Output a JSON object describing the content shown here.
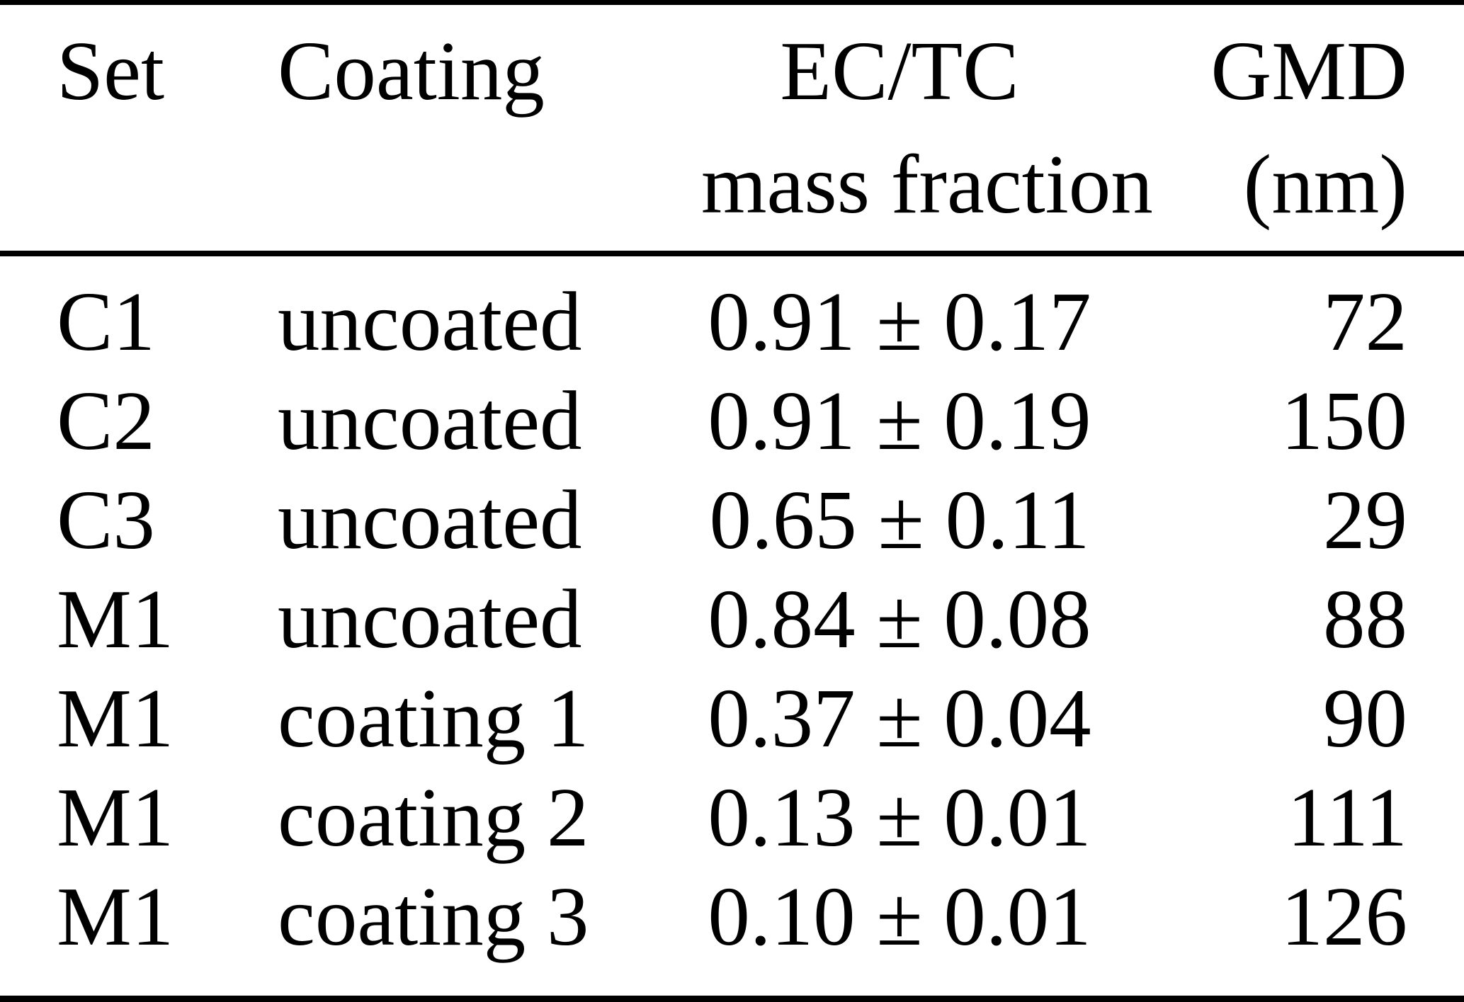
{
  "table": {
    "headers": [
      {
        "line1": "Set",
        "line2": ""
      },
      {
        "line1": "Coating",
        "line2": ""
      },
      {
        "line1": "EC/TC",
        "line2": "mass fraction"
      },
      {
        "line1": "GMD",
        "line2": "(nm)"
      }
    ],
    "rows": [
      [
        "C1",
        "uncoated",
        "0.91 ± 0.17",
        "72"
      ],
      [
        "C2",
        "uncoated",
        "0.91 ± 0.19",
        "150"
      ],
      [
        "C3",
        "uncoated",
        "0.65 ± 0.11",
        "29"
      ],
      [
        "M1",
        "uncoated",
        "0.84 ± 0.08",
        "88"
      ],
      [
        "M1",
        "coating 1",
        "0.37 ± 0.04",
        "90"
      ],
      [
        "M1",
        "coating 2",
        "0.13 ± 0.01",
        "111"
      ],
      [
        "M1",
        "coating 3",
        "0.10 ± 0.01",
        "126"
      ]
    ]
  },
  "colors": {
    "text": "#000000",
    "background": "#ffffff",
    "rule": "#000000"
  },
  "chart_data": {
    "type": "table",
    "title": "",
    "columns": [
      "Set",
      "Coating",
      "EC/TC mass fraction",
      "GMD (nm)"
    ],
    "rows": [
      [
        "C1",
        "uncoated",
        "0.91 ± 0.17",
        72
      ],
      [
        "C2",
        "uncoated",
        "0.91 ± 0.19",
        150
      ],
      [
        "C3",
        "uncoated",
        "0.65 ± 0.11",
        29
      ],
      [
        "M1",
        "uncoated",
        "0.84 ± 0.08",
        88
      ],
      [
        "M1",
        "coating 1",
        "0.37 ± 0.04",
        90
      ],
      [
        "M1",
        "coating 2",
        "0.13 ± 0.01",
        111
      ],
      [
        "M1",
        "coating 3",
        "0.10 ± 0.01",
        126
      ]
    ],
    "ec_tc_mean": [
      0.91,
      0.91,
      0.65,
      0.84,
      0.37,
      0.13,
      0.1
    ],
    "ec_tc_uncertainty": [
      0.17,
      0.19,
      0.11,
      0.08,
      0.04,
      0.01,
      0.01
    ],
    "gmd_nm": [
      72,
      150,
      29,
      88,
      90,
      111,
      126
    ]
  }
}
